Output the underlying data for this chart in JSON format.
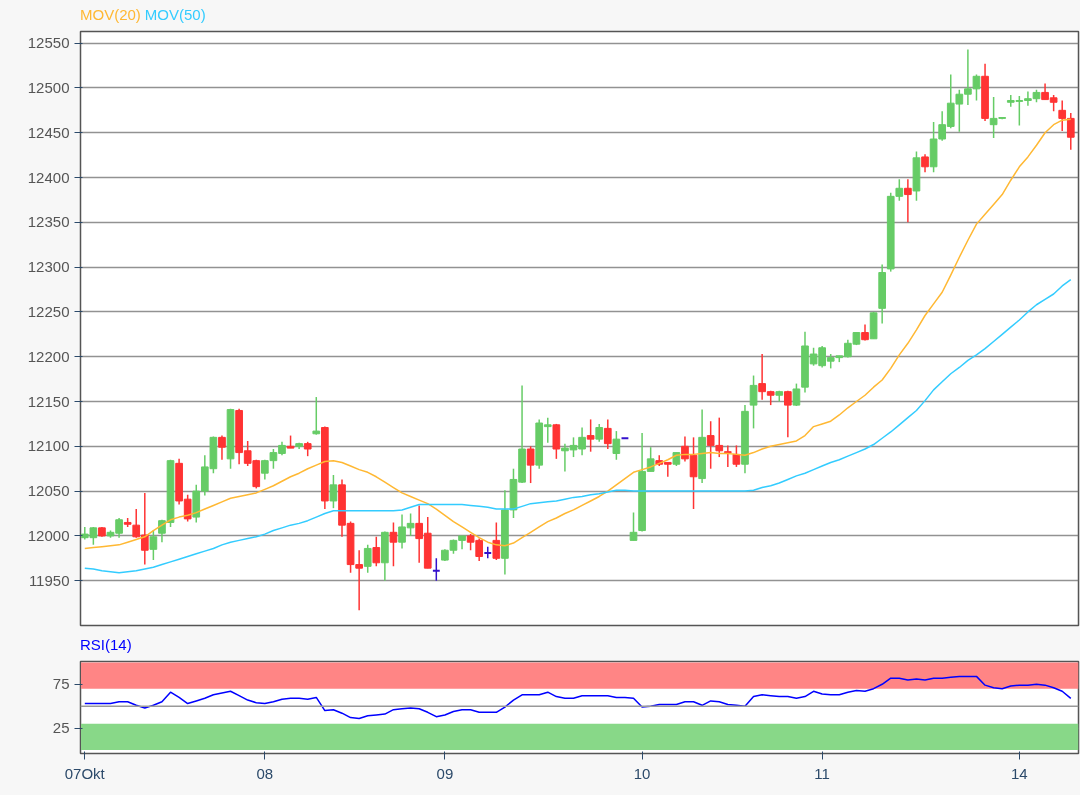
{
  "chart_data": [
    {
      "type": "candlestick",
      "categories": [
        "07Okt",
        null,
        null,
        null,
        null,
        null,
        null,
        null,
        null,
        null,
        null,
        null,
        null,
        null,
        null,
        null,
        null,
        null,
        null,
        null,
        null,
        "08",
        null,
        null,
        null,
        null,
        null,
        null,
        null,
        null,
        null,
        null,
        null,
        null,
        null,
        null,
        null,
        null,
        null,
        null,
        null,
        null,
        "09",
        null,
        null,
        null,
        null,
        null,
        null,
        null,
        null,
        null,
        null,
        null,
        null,
        null,
        null,
        null,
        null,
        null,
        null,
        null,
        null,
        null,
        null,
        "10",
        null,
        null,
        null,
        null,
        null,
        null,
        null,
        null,
        null,
        null,
        null,
        null,
        null,
        null,
        null,
        null,
        null,
        null,
        null,
        null,
        "11",
        null,
        null,
        null,
        null,
        null,
        null,
        null,
        null,
        null,
        null,
        null,
        null,
        null,
        null,
        null,
        null,
        null,
        null,
        null,
        null,
        null,
        null,
        "14",
        null,
        null,
        null,
        null,
        null,
        null
      ],
      "ohlc": [
        [
          11998,
          12010,
          11996,
          12002
        ],
        [
          11998,
          12010,
          11990,
          12009
        ],
        [
          12009,
          12010,
          11999,
          12000
        ],
        [
          12000,
          12006,
          11998,
          12004
        ],
        [
          12003,
          12020,
          11998,
          12018
        ],
        [
          12015,
          12020,
          12010,
          12013
        ],
        [
          12012,
          12030,
          11998,
          11999
        ],
        [
          12001,
          12048,
          11968,
          11984
        ],
        [
          11985,
          12006,
          11973,
          11999
        ],
        [
          12003,
          12018,
          11993,
          12017
        ],
        [
          12015,
          12085,
          12010,
          12084
        ],
        [
          12081,
          12086,
          12035,
          12039
        ],
        [
          12041,
          12046,
          12016,
          12019
        ],
        [
          12021,
          12057,
          12015,
          12050
        ],
        [
          12050,
          12090,
          12045,
          12077
        ],
        [
          12075,
          12111,
          12070,
          12110
        ],
        [
          12110,
          12112,
          12085,
          12099
        ],
        [
          12086,
          12142,
          12075,
          12141
        ],
        [
          12140,
          12142,
          12080,
          12093
        ],
        [
          12095,
          12106,
          12078,
          12081
        ],
        [
          12084,
          12085,
          12053,
          12055
        ],
        [
          12070,
          12085,
          12063,
          12084
        ],
        [
          12084,
          12097,
          12075,
          12093
        ],
        [
          12092,
          12105,
          12090,
          12101
        ],
        [
          12100,
          12112,
          12098,
          12098
        ],
        [
          12100,
          12104,
          12097,
          12103
        ],
        [
          12103,
          12105,
          12089,
          12097
        ],
        [
          12114,
          12155,
          12113,
          12117
        ],
        [
          12121,
          12122,
          12030,
          12039
        ],
        [
          12039,
          12068,
          12031,
          12057
        ],
        [
          12057,
          12063,
          11999,
          12012
        ],
        [
          12014,
          12016,
          11959,
          11968
        ],
        [
          11968,
          11984,
          11917,
          11964
        ],
        [
          11966,
          11990,
          11959,
          11986
        ],
        [
          11987,
          11999,
          11966,
          11970
        ],
        [
          11970,
          12005,
          11950,
          12004
        ],
        [
          12004,
          12015,
          11966,
          11993
        ],
        [
          11993,
          12024,
          11986,
          12010
        ],
        [
          12009,
          12025,
          12000,
          12014
        ],
        [
          12014,
          12034,
          11970,
          11997
        ],
        [
          12003,
          12021,
          11964,
          11964
        ],
        [
          11961,
          11975,
          11950,
          11961
        ],
        [
          11973,
          11985,
          11972,
          11984
        ],
        [
          11984,
          11996,
          11980,
          11995
        ],
        [
          11995,
          12000,
          11985,
          12000
        ],
        [
          12000,
          12002,
          11984,
          11993
        ],
        [
          11995,
          11997,
          11972,
          11977
        ],
        [
          11981,
          11988,
          11975,
          11981
        ],
        [
          11995,
          12015,
          11973,
          11975
        ],
        [
          11975,
          12051,
          11957,
          12029
        ],
        [
          12029,
          12075,
          12020,
          12063
        ],
        [
          12060,
          12168,
          12059,
          12097
        ],
        [
          12097,
          12100,
          12059,
          12079
        ],
        [
          12079,
          12130,
          12075,
          12126
        ],
        [
          12122,
          12132,
          12104,
          12124
        ],
        [
          12124,
          12125,
          12086,
          12097
        ],
        [
          12095,
          12103,
          12072,
          12098
        ],
        [
          12096,
          12110,
          12088,
          12101
        ],
        [
          12097,
          12121,
          12090,
          12110
        ],
        [
          12112,
          12130,
          12094,
          12108
        ],
        [
          12108,
          12125,
          12105,
          12121
        ],
        [
          12120,
          12130,
          12097,
          12103
        ],
        [
          12092,
          12117,
          12085,
          12108
        ],
        [
          12109,
          12109,
          12109,
          12109
        ],
        [
          11995,
          12026,
          11995,
          12004
        ],
        [
          12006,
          12115,
          12005,
          12072
        ],
        [
          12072,
          12099,
          12072,
          12086
        ],
        [
          12084,
          12090,
          12078,
          12080
        ],
        [
          12082,
          12082,
          12066,
          12080
        ],
        [
          12080,
          12093,
          12078,
          12093
        ],
        [
          12100,
          12111,
          12083,
          12086
        ],
        [
          12090,
          12110,
          12030,
          12066
        ],
        [
          12064,
          12141,
          12059,
          12110
        ],
        [
          12112,
          12128,
          12075,
          12101
        ],
        [
          12101,
          12132,
          12088,
          12095
        ],
        [
          12094,
          12101,
          12077,
          12093
        ],
        [
          12091,
          12101,
          12077,
          12080
        ],
        [
          12080,
          12146,
          12070,
          12139
        ],
        [
          12146,
          12179,
          12120,
          12168
        ],
        [
          12170,
          12203,
          12152,
          12161
        ],
        [
          12161,
          12162,
          12146,
          12157
        ],
        [
          12157,
          12162,
          12150,
          12161
        ],
        [
          12161,
          12162,
          12110,
          12146
        ],
        [
          12146,
          12170,
          12145,
          12164
        ],
        [
          12166,
          12228,
          12160,
          12212
        ],
        [
          12192,
          12210,
          12190,
          12203
        ],
        [
          12190,
          12212,
          12188,
          12210
        ],
        [
          12195,
          12203,
          12187,
          12199
        ],
        [
          12199,
          12201,
          12194,
          12201
        ],
        [
          12200,
          12219,
          12199,
          12215
        ],
        [
          12214,
          12227,
          12213,
          12227
        ],
        [
          12227,
          12236,
          12218,
          12219
        ],
        [
          12220,
          12250,
          12220,
          12249
        ],
        [
          12254,
          12303,
          12237,
          12294
        ],
        [
          12298,
          12383,
          12295,
          12379
        ],
        [
          12379,
          12398,
          12374,
          12388
        ],
        [
          12388,
          12398,
          12350,
          12381
        ],
        [
          12385,
          12429,
          12374,
          12422
        ],
        [
          12423,
          12426,
          12406,
          12412
        ],
        [
          12412,
          12462,
          12406,
          12443
        ],
        [
          12443,
          12474,
          12441,
          12459
        ],
        [
          12457,
          12515,
          12455,
          12483
        ],
        [
          12482,
          12498,
          12451,
          12493
        ],
        [
          12493,
          12543,
          12481,
          12499
        ],
        [
          12499,
          12515,
          12486,
          12513
        ],
        [
          12513,
          12527,
          12463,
          12466
        ],
        [
          12459,
          12490,
          12444,
          12466
        ],
        [
          12466,
          12467,
          12465,
          12467
        ],
        [
          12484,
          12492,
          12479,
          12486
        ],
        [
          12485,
          12491,
          12458,
          12486
        ],
        [
          12486,
          12496,
          12480,
          12488
        ],
        [
          12488,
          12498,
          12484,
          12495
        ],
        [
          12495,
          12505,
          12487,
          12487
        ],
        [
          12489,
          12492,
          12474,
          12484
        ],
        [
          12475,
          12486,
          12452,
          12466
        ],
        [
          12466,
          12472,
          12431,
          12445
        ]
      ],
      "colors": [
        "#66cc66",
        "#66cc66",
        "#ff3333",
        "#66cc66",
        "#66cc66",
        "#ff3333",
        "#ff3333",
        "#ff3333",
        "#66cc66",
        "#66cc66",
        "#66cc66",
        "#ff3333",
        "#ff3333",
        "#66cc66",
        "#66cc66",
        "#66cc66",
        "#ff3333",
        "#66cc66",
        "#ff3333",
        "#ff3333",
        "#ff3333",
        "#66cc66",
        "#66cc66",
        "#66cc66",
        "#ff3333",
        "#66cc66",
        "#ff3333",
        "#66cc66",
        "#ff3333",
        "#66cc66",
        "#ff3333",
        "#ff3333",
        "#ff3333",
        "#66cc66",
        "#ff3333",
        "#66cc66",
        "#ff3333",
        "#66cc66",
        "#66cc66",
        "#ff3333",
        "#ff3333",
        "#3311cc",
        "#66cc66",
        "#66cc66",
        "#66cc66",
        "#ff3333",
        "#ff3333",
        "#3311cc",
        "#ff3333",
        "#66cc66",
        "#66cc66",
        "#66cc66",
        "#ff3333",
        "#66cc66",
        "#66cc66",
        "#ff3333",
        "#66cc66",
        "#66cc66",
        "#66cc66",
        "#ff3333",
        "#66cc66",
        "#ff3333",
        "#66cc66",
        "#3311cc",
        "#66cc66",
        "#66cc66",
        "#66cc66",
        "#ff3333",
        "#ff3333",
        "#66cc66",
        "#ff3333",
        "#ff3333",
        "#66cc66",
        "#ff3333",
        "#ff3333",
        "#ff3333",
        "#ff3333",
        "#66cc66",
        "#66cc66",
        "#ff3333",
        "#ff3333",
        "#66cc66",
        "#ff3333",
        "#66cc66",
        "#66cc66",
        "#66cc66",
        "#66cc66",
        "#66cc66",
        "#66cc66",
        "#66cc66",
        "#66cc66",
        "#ff3333",
        "#66cc66",
        "#66cc66",
        "#66cc66",
        "#66cc66",
        "#ff3333",
        "#66cc66",
        "#ff3333",
        "#66cc66",
        "#66cc66",
        "#66cc66",
        "#66cc66",
        "#66cc66",
        "#66cc66",
        "#ff3333",
        "#66cc66",
        "#66cc66",
        "#66cc66",
        "#66cc66",
        "#66cc66",
        "#66cc66",
        "#ff3333",
        "#ff3333",
        "#ff3333",
        "#ff3333"
      ],
      "series": [
        {
          "name": "MOV(20)",
          "type": "line",
          "color": "#ffb833",
          "values": [
            11986,
            11987,
            11988,
            11989,
            11990,
            11993,
            11996,
            11999,
            12006,
            12012,
            12018,
            12021,
            12023,
            12026,
            12030,
            12034,
            12038,
            12042,
            12044,
            12046,
            12048,
            12052,
            12056,
            12061,
            12066,
            12070,
            12075,
            12079,
            12083,
            12084,
            12082,
            12078,
            12074,
            12071,
            12066,
            12060,
            12054,
            12048,
            12044,
            12040,
            12036,
            12030,
            12023,
            12016,
            12010,
            12004,
            11998,
            11993,
            11990,
            11989,
            11992,
            11998,
            12004,
            12010,
            12016,
            12020,
            12025,
            12029,
            12034,
            12039,
            12044,
            12050,
            12057,
            12064,
            12071,
            12074,
            12077,
            12081,
            12085,
            12090,
            12091,
            12091,
            12092,
            12093,
            12092,
            12092,
            12091,
            12090,
            12093,
            12097,
            12100,
            12102,
            12104,
            12106,
            12112,
            12122,
            12125,
            12128,
            12135,
            12143,
            12150,
            12157,
            12166,
            12174,
            12187,
            12202,
            12215,
            12230,
            12246,
            12259,
            12272,
            12291,
            12311,
            12330,
            12348,
            12359,
            12370,
            12381,
            12397,
            12412,
            12423,
            12436,
            12450,
            12459,
            12464,
            12465
          ]
        },
        {
          "name": "MOV(50)",
          "type": "line",
          "color": "#33ccff",
          "values": [
            11964,
            11963,
            11961,
            11960,
            11959,
            11960,
            11961,
            11963,
            11965,
            11968,
            11971,
            11974,
            11977,
            11980,
            11983,
            11986,
            11990,
            11993,
            11995,
            11997,
            11999,
            12002,
            12006,
            12009,
            12012,
            12014,
            12017,
            12021,
            12025,
            12028,
            12028,
            12028,
            12028,
            12028,
            12028,
            12028,
            12028,
            12029,
            12032,
            12035,
            12035,
            12035,
            12035,
            12035,
            12035,
            12034,
            12033,
            12032,
            12030,
            12030,
            12030,
            12033,
            12036,
            12037,
            12038,
            12039,
            12041,
            12043,
            12044,
            12046,
            12047,
            12049,
            12051,
            12051,
            12050,
            12050,
            12050,
            12050,
            12050,
            12050,
            12050,
            12050,
            12050,
            12050,
            12050,
            12050,
            12050,
            12050,
            12051,
            12054,
            12056,
            12059,
            12063,
            12067,
            12070,
            12074,
            12078,
            12082,
            12085,
            12089,
            12093,
            12097,
            12102,
            12109,
            12116,
            12124,
            12132,
            12140,
            12151,
            12163,
            12172,
            12181,
            12188,
            12196,
            12202,
            12209,
            12217,
            12225,
            12233,
            12241,
            12250,
            12258,
            12264,
            12270,
            12279,
            12286
          ]
        }
      ],
      "ylim": [
        11900,
        12563
      ],
      "yticks": [
        11950,
        12000,
        12050,
        12100,
        12150,
        12200,
        12250,
        12300,
        12350,
        12400,
        12450,
        12500,
        12550
      ],
      "grid": "y",
      "legend": "top left",
      "tick_labels": "y"
    },
    {
      "type": "line",
      "categories": [
        "07Okt",
        null,
        null,
        null,
        null,
        null,
        null,
        null,
        null,
        null,
        null,
        null,
        null,
        null,
        null,
        null,
        null,
        null,
        null,
        null,
        null,
        "08",
        null,
        null,
        null,
        null,
        null,
        null,
        null,
        null,
        null,
        null,
        null,
        null,
        null,
        null,
        null,
        null,
        null,
        null,
        null,
        null,
        "09",
        null,
        null,
        null,
        null,
        null,
        null,
        null,
        null,
        null,
        null,
        null,
        null,
        null,
        null,
        null,
        null,
        null,
        null,
        null,
        null,
        null,
        null,
        "10",
        null,
        null,
        null,
        null,
        null,
        null,
        null,
        null,
        null,
        null,
        null,
        null,
        null,
        null,
        null,
        null,
        null,
        null,
        null,
        null,
        "11",
        null,
        null,
        null,
        null,
        null,
        null,
        null,
        null,
        null,
        null,
        null,
        null,
        null,
        null,
        null,
        null,
        null,
        null,
        null,
        null,
        null,
        null,
        "14",
        null,
        null,
        null,
        null,
        null,
        null
      ],
      "series": [
        {
          "name": "RSI(14)",
          "color": "#0000ff",
          "values": [
            53,
            53,
            53,
            53,
            55,
            55,
            51,
            48,
            51,
            55,
            66,
            60,
            53,
            56,
            59,
            63,
            65,
            67,
            62,
            57,
            54,
            53,
            55,
            58,
            59,
            59,
            58,
            60,
            45,
            46,
            42,
            37,
            36,
            39,
            40,
            41,
            46,
            47,
            48,
            47,
            43,
            38,
            40,
            44,
            46,
            46,
            43,
            43,
            43,
            49,
            57,
            63,
            63,
            63,
            66,
            61,
            59,
            59,
            62,
            62,
            62,
            62,
            60,
            60,
            59,
            49,
            50,
            52,
            52,
            52,
            55,
            55,
            51,
            56,
            55,
            52,
            51,
            50,
            61,
            63,
            62,
            61,
            61,
            59,
            61,
            67,
            64,
            63,
            63,
            66,
            68,
            67,
            70,
            75,
            82,
            82,
            80,
            81,
            80,
            82,
            82,
            83,
            84,
            84,
            84,
            74,
            71,
            70,
            73,
            74,
            74,
            75,
            74,
            71,
            67,
            59
          ]
        }
      ],
      "ylim": [
        -4,
        101
      ],
      "yticks": [
        25,
        75
      ],
      "grid": "y",
      "legend": "top left",
      "bands": [
        {
          "axis": "y",
          "from": 70,
          "to": 100,
          "color": "#ff8585"
        },
        {
          "axis": "y",
          "from": 0,
          "to": 30,
          "color": "#88d888"
        }
      ],
      "ref_lines": [
        {
          "axis": "y",
          "value": 50,
          "color": "#999999"
        }
      ]
    }
  ]
}
